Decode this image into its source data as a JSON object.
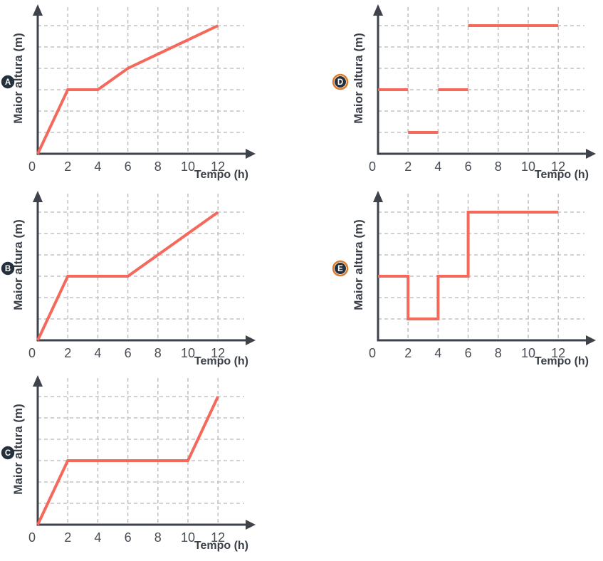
{
  "page": {
    "background": "#ffffff",
    "kind": "five small line charts labelled A–E, height vs time"
  },
  "colors": {
    "line": "#f5695c",
    "axis": "#3d424b",
    "tick_text": "#484c54",
    "label_text": "#3a3f47",
    "gridline": "#c3c3c3",
    "badge_fill": "#25303d",
    "badge_text": "#ffffff",
    "badge_ring": "#dd7b2c"
  },
  "axis_labels": {
    "x": "Tempo (h)",
    "y": "Maior altura (m)"
  },
  "chart_data": [
    {
      "id": "A",
      "badge": "A",
      "badge_highlighted": false,
      "type": "line",
      "xlabel": "Tempo (h)",
      "ylabel": "Maior altura (m)",
      "x_ticks": [
        "0",
        "2",
        "4",
        "6",
        "8",
        "10",
        "12"
      ],
      "y_ticks": [],
      "xlim": [
        0,
        14
      ],
      "ylim": [
        0,
        7
      ],
      "grid": "dashed",
      "y_gridline_values": [
        1,
        2,
        3,
        4,
        5,
        6
      ],
      "series": [
        {
          "name": "altura",
          "points": [
            [
              0,
              0
            ],
            [
              2,
              3
            ],
            [
              4,
              3
            ],
            [
              6,
              4
            ],
            [
              12,
              6
            ]
          ]
        }
      ]
    },
    {
      "id": "D",
      "badge": "D",
      "badge_highlighted": true,
      "type": "line",
      "xlabel": "Tempo (h)",
      "ylabel": "Maior altura (m)",
      "x_ticks": [
        "0",
        "2",
        "4",
        "6",
        "8",
        "10",
        "12"
      ],
      "y_ticks": [],
      "xlim": [
        0,
        14
      ],
      "ylim": [
        0,
        7
      ],
      "grid": "dashed",
      "y_gridline_values": [
        1,
        2,
        3,
        4,
        5,
        6
      ],
      "series": [
        {
          "name": "segment-0-2",
          "points": [
            [
              0,
              3
            ],
            [
              2,
              3
            ]
          ]
        },
        {
          "name": "segment-2-4",
          "points": [
            [
              2,
              1
            ],
            [
              4,
              1
            ]
          ]
        },
        {
          "name": "segment-4-6",
          "points": [
            [
              4,
              3
            ],
            [
              6,
              3
            ]
          ]
        },
        {
          "name": "segment-6-12",
          "points": [
            [
              6,
              6
            ],
            [
              12,
              6
            ]
          ]
        }
      ]
    },
    {
      "id": "B",
      "badge": "B",
      "badge_highlighted": false,
      "type": "line",
      "xlabel": "Tempo (h)",
      "ylabel": "Maior altura (m)",
      "x_ticks": [
        "0",
        "2",
        "4",
        "6",
        "8",
        "10",
        "12"
      ],
      "y_ticks": [],
      "xlim": [
        0,
        14
      ],
      "ylim": [
        0,
        7
      ],
      "grid": "dashed",
      "y_gridline_values": [
        1,
        2,
        3,
        4,
        5,
        6
      ],
      "series": [
        {
          "name": "altura",
          "points": [
            [
              0,
              0
            ],
            [
              2,
              3
            ],
            [
              6,
              3
            ],
            [
              12,
              6
            ]
          ]
        }
      ]
    },
    {
      "id": "E",
      "badge": "E",
      "badge_highlighted": true,
      "type": "line",
      "xlabel": "Tempo (h)",
      "ylabel": "Maior altura (m)",
      "x_ticks": [
        "0",
        "2",
        "4",
        "6",
        "8",
        "10",
        "12"
      ],
      "y_ticks": [],
      "xlim": [
        0,
        14
      ],
      "ylim": [
        0,
        7
      ],
      "grid": "dashed",
      "y_gridline_values": [
        1,
        2,
        3,
        4,
        5,
        6
      ],
      "series": [
        {
          "name": "altura-step",
          "points": [
            [
              0,
              3
            ],
            [
              2,
              3
            ],
            [
              2,
              1
            ],
            [
              4,
              1
            ],
            [
              4,
              3
            ],
            [
              6,
              3
            ],
            [
              6,
              6
            ],
            [
              12,
              6
            ]
          ]
        }
      ]
    },
    {
      "id": "C",
      "badge": "C",
      "badge_highlighted": false,
      "type": "line",
      "xlabel": "Tempo (h)",
      "ylabel": "Maior altura (m)",
      "x_ticks": [
        "0",
        "2",
        "4",
        "6",
        "8",
        "10",
        "12"
      ],
      "y_ticks": [],
      "xlim": [
        0,
        14
      ],
      "ylim": [
        0,
        7
      ],
      "grid": "dashed",
      "y_gridline_values": [
        1,
        2,
        3,
        4,
        5,
        6
      ],
      "series": [
        {
          "name": "altura",
          "points": [
            [
              0,
              0
            ],
            [
              2,
              3
            ],
            [
              10,
              3
            ],
            [
              12,
              6
            ]
          ]
        }
      ]
    }
  ]
}
